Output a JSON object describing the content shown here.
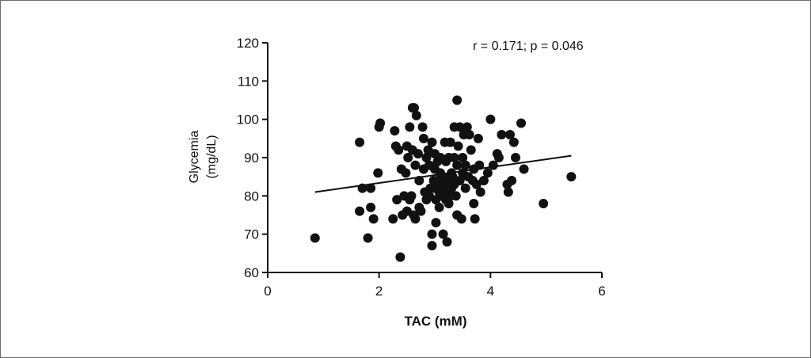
{
  "chart_data": {
    "type": "scatter",
    "xlabel": "TAC (mM)",
    "ylabel": [
      "Glycemia",
      "(mg/dL)"
    ],
    "annotation": "r = 0.171; p = 0.046",
    "xlim": [
      0,
      6
    ],
    "ylim": [
      60,
      120
    ],
    "xticks": [
      0,
      2,
      4,
      6
    ],
    "yticks": [
      60,
      70,
      80,
      90,
      100,
      110,
      120
    ],
    "grid": false,
    "colors": {
      "points": "#111111",
      "axis": "#111111",
      "border": "#6d6d6d"
    },
    "trendline": {
      "x": [
        0.85,
        5.45
      ],
      "y": [
        81,
        90.5
      ]
    },
    "points": [
      [
        0.85,
        69
      ],
      [
        1.65,
        94
      ],
      [
        1.65,
        76
      ],
      [
        1.7,
        82
      ],
      [
        1.8,
        69
      ],
      [
        1.85,
        77
      ],
      [
        1.85,
        82
      ],
      [
        1.9,
        74
      ],
      [
        1.98,
        86
      ],
      [
        2.0,
        98
      ],
      [
        2.02,
        99
      ],
      [
        2.25,
        74
      ],
      [
        2.28,
        97
      ],
      [
        2.3,
        93
      ],
      [
        2.32,
        79
      ],
      [
        2.35,
        92
      ],
      [
        2.38,
        64
      ],
      [
        2.4,
        87
      ],
      [
        2.42,
        75
      ],
      [
        2.45,
        80
      ],
      [
        2.48,
        86
      ],
      [
        2.5,
        93
      ],
      [
        2.5,
        76
      ],
      [
        2.52,
        90
      ],
      [
        2.55,
        98
      ],
      [
        2.55,
        79
      ],
      [
        2.58,
        80
      ],
      [
        2.6,
        103
      ],
      [
        2.6,
        92
      ],
      [
        2.62,
        75
      ],
      [
        2.63,
        103
      ],
      [
        2.65,
        88
      ],
      [
        2.65,
        74
      ],
      [
        2.67,
        101
      ],
      [
        2.7,
        91
      ],
      [
        2.72,
        84
      ],
      [
        2.72,
        77
      ],
      [
        2.75,
        76
      ],
      [
        2.78,
        98
      ],
      [
        2.8,
        95
      ],
      [
        2.8,
        87
      ],
      [
        2.82,
        81
      ],
      [
        2.85,
        90
      ],
      [
        2.85,
        79
      ],
      [
        2.88,
        92
      ],
      [
        2.9,
        88
      ],
      [
        2.9,
        80
      ],
      [
        2.92,
        82
      ],
      [
        2.95,
        94
      ],
      [
        2.95,
        70
      ],
      [
        2.95,
        67
      ],
      [
        2.98,
        84
      ],
      [
        3.0,
        91
      ],
      [
        3.0,
        87
      ],
      [
        3.0,
        82
      ],
      [
        3.02,
        79
      ],
      [
        3.02,
        73
      ],
      [
        3.05,
        89
      ],
      [
        3.05,
        84
      ],
      [
        3.08,
        81
      ],
      [
        3.08,
        77
      ],
      [
        3.1,
        90
      ],
      [
        3.1,
        86
      ],
      [
        3.12,
        83
      ],
      [
        3.12,
        80
      ],
      [
        3.15,
        85
      ],
      [
        3.15,
        70
      ],
      [
        3.18,
        94
      ],
      [
        3.18,
        82
      ],
      [
        3.2,
        89
      ],
      [
        3.2,
        81
      ],
      [
        3.2,
        79
      ],
      [
        3.22,
        84
      ],
      [
        3.22,
        68
      ],
      [
        3.25,
        90
      ],
      [
        3.25,
        83
      ],
      [
        3.25,
        78
      ],
      [
        3.28,
        94
      ],
      [
        3.28,
        80
      ],
      [
        3.3,
        86
      ],
      [
        3.3,
        82
      ],
      [
        3.32,
        85
      ],
      [
        3.35,
        98
      ],
      [
        3.35,
        90
      ],
      [
        3.35,
        83
      ],
      [
        3.38,
        80
      ],
      [
        3.4,
        105
      ],
      [
        3.4,
        88
      ],
      [
        3.4,
        75
      ],
      [
        3.42,
        93
      ],
      [
        3.45,
        98
      ],
      [
        3.45,
        84
      ],
      [
        3.48,
        74
      ],
      [
        3.5,
        90
      ],
      [
        3.5,
        86
      ],
      [
        3.52,
        96
      ],
      [
        3.55,
        88
      ],
      [
        3.55,
        82
      ],
      [
        3.58,
        98
      ],
      [
        3.6,
        85
      ],
      [
        3.62,
        96
      ],
      [
        3.65,
        92
      ],
      [
        3.68,
        84
      ],
      [
        3.7,
        87
      ],
      [
        3.7,
        78
      ],
      [
        3.72,
        74
      ],
      [
        3.75,
        83
      ],
      [
        3.78,
        95
      ],
      [
        3.8,
        88
      ],
      [
        3.82,
        81
      ],
      [
        3.88,
        84
      ],
      [
        3.95,
        86
      ],
      [
        4.0,
        100
      ],
      [
        4.05,
        88
      ],
      [
        4.12,
        91
      ],
      [
        4.15,
        90
      ],
      [
        4.2,
        96
      ],
      [
        4.3,
        83
      ],
      [
        4.32,
        81
      ],
      [
        4.35,
        96
      ],
      [
        4.38,
        84
      ],
      [
        4.42,
        94
      ],
      [
        4.45,
        90
      ],
      [
        4.55,
        99
      ],
      [
        4.6,
        87
      ],
      [
        4.95,
        78
      ],
      [
        5.45,
        85
      ]
    ]
  }
}
